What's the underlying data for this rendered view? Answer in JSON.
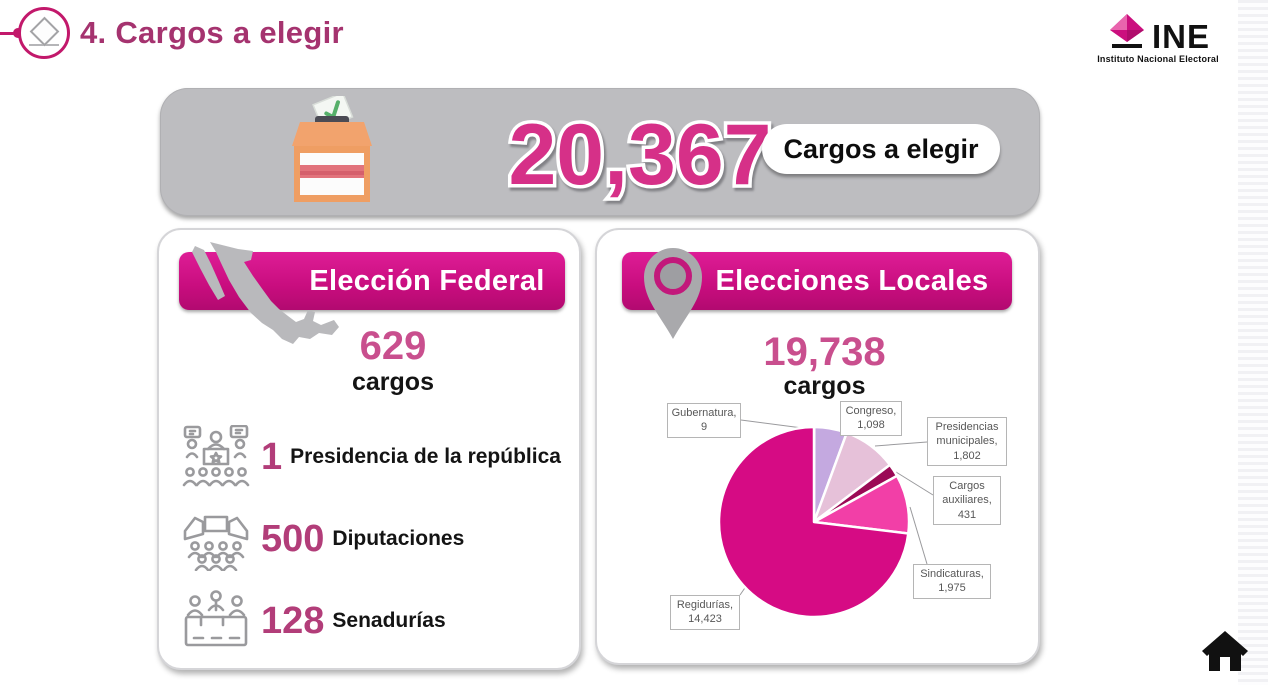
{
  "page_title": "4. Cargos a elegir",
  "logo": {
    "acronym": "INE",
    "subtitle": "Instituto Nacional Electoral"
  },
  "banner": {
    "total": "20,367",
    "label": "Cargos a elegir"
  },
  "federal": {
    "header": "Elección Federal",
    "total": "629",
    "total_unit": "cargos",
    "items": [
      {
        "count": "1",
        "label": "Presidencia de la república",
        "icon": "podium-audience-icon"
      },
      {
        "count": "500",
        "label": "Diputaciones",
        "icon": "parliament-benches-icon"
      },
      {
        "count": "128",
        "label": "Senadurías",
        "icon": "senate-desk-icon"
      }
    ]
  },
  "local": {
    "header": "Elecciones Locales",
    "total": "19,738",
    "total_unit": "cargos"
  },
  "chart_data": {
    "type": "pie",
    "title": "Elecciones Locales — cargos por tipo",
    "total": 19738,
    "start_angle_deg": -90,
    "direction": "clockwise",
    "legend": "callout-labels",
    "slices": [
      {
        "label": "Gubernatura",
        "value": 9,
        "callout": "Gubernatura,",
        "value_display": "9",
        "color": "#ecdcf0"
      },
      {
        "label": "Congreso",
        "value": 1098,
        "callout": "Congreso,",
        "value_display": "1,098",
        "color": "#c4a9e0"
      },
      {
        "label": "Presidencias municipales",
        "value": 1802,
        "callout": "Presidencias municipales,",
        "value_display": "1,802",
        "color": "#e6c1d9"
      },
      {
        "label": "Cargos auxiliares",
        "value": 431,
        "callout": "Cargos auxiliares,",
        "value_display": "431",
        "color": "#9b0a56"
      },
      {
        "label": "Sindicaturas",
        "value": 1975,
        "callout": "Sindicaturas,",
        "value_display": "1,975",
        "color": "#f23fa7"
      },
      {
        "label": "Regidurías",
        "value": 14423,
        "callout": "Regidurías,",
        "value_display": "14,423",
        "color": "#d60b84"
      }
    ]
  },
  "colors": {
    "accent_magenta": "#d5007f",
    "title_text": "#a5336f",
    "header_gradient_top": "#de1d96",
    "header_gradient_bottom": "#b20a70",
    "banner_gray": "#bdbdc0",
    "big_number_pink": "#d63088",
    "count_pink": "#b23d79",
    "total_pink": "#c94f8e",
    "callout_text": "#575757"
  }
}
